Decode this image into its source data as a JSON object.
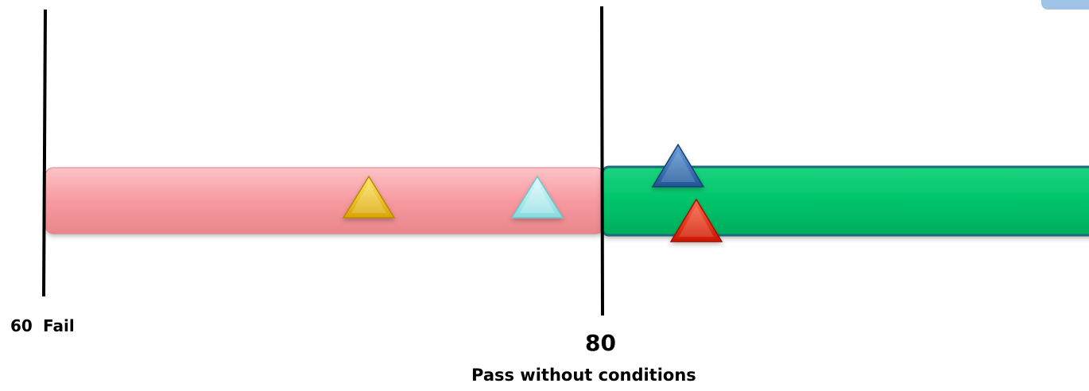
{
  "scale": {
    "fail_value": "60",
    "fail_label": "Fail",
    "pass_value": "80",
    "pass_label": "Pass without conditions"
  },
  "colors": {
    "fail_band": "#f79aa0",
    "pass_band": "#00c46a",
    "divider": "#000000",
    "markers": [
      "#f2c200",
      "#a6edf0",
      "#2f6fb4",
      "#ee1d00"
    ]
  }
}
